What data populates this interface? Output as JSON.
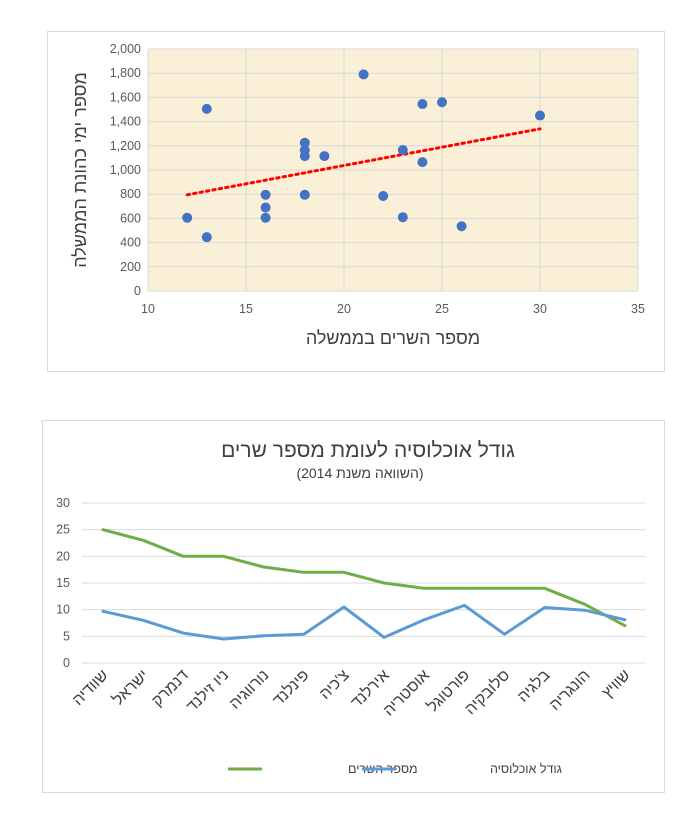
{
  "chart_data": [
    {
      "type": "scatter",
      "title": "",
      "xlabel": "מספר השרים בממשלה",
      "ylabel": "מספר ימי כהונת הממשלה",
      "xlim": [
        10,
        35
      ],
      "ylim": [
        0,
        2000
      ],
      "xticks": [
        10,
        15,
        20,
        25,
        30,
        35
      ],
      "xtick_labels": [
        "10",
        "15",
        "20",
        "25",
        "30",
        "35"
      ],
      "yticks": [
        0,
        200,
        400,
        600,
        800,
        1000,
        1200,
        1400,
        1600,
        1800,
        2000
      ],
      "ytick_labels": [
        "0",
        "200",
        "400",
        "600",
        "800",
        "1,000",
        "1,200",
        "1,400",
        "1,600",
        "1,800",
        "2,000"
      ],
      "points": [
        {
          "x": 12,
          "y": 605
        },
        {
          "x": 13,
          "y": 1505
        },
        {
          "x": 13,
          "y": 445
        },
        {
          "x": 16,
          "y": 795
        },
        {
          "x": 16,
          "y": 690
        },
        {
          "x": 16,
          "y": 605
        },
        {
          "x": 18,
          "y": 1225
        },
        {
          "x": 18,
          "y": 1165
        },
        {
          "x": 18,
          "y": 1115
        },
        {
          "x": 18,
          "y": 795
        },
        {
          "x": 19,
          "y": 1115
        },
        {
          "x": 21,
          "y": 1790
        },
        {
          "x": 22,
          "y": 785
        },
        {
          "x": 23,
          "y": 1165
        },
        {
          "x": 23,
          "y": 610
        },
        {
          "x": 24,
          "y": 1545
        },
        {
          "x": 24,
          "y": 1065
        },
        {
          "x": 25,
          "y": 1560
        },
        {
          "x": 26,
          "y": 535
        },
        {
          "x": 30,
          "y": 1450
        }
      ],
      "trendline": {
        "x": [
          12,
          30
        ],
        "y": [
          795,
          1340
        ]
      },
      "colors": {
        "points": "#4472C4",
        "trendline": "#FF0000",
        "plot_bg": "#FAF0D7",
        "grid": "#D9D9D9"
      }
    },
    {
      "type": "line",
      "title": "גודל אוכלוסיה לעומת מספר שרים",
      "subtitle": "(השוואה משנת 2014)",
      "categories": [
        "שוודיה",
        "ישראל",
        "דנמרק",
        "ניו זילנד",
        "נורווגיה",
        "פינלנד",
        "צ'כיה",
        "אירלנד",
        "אוסטריה",
        "פורטוגל",
        "סלובקיה",
        "בלגיה",
        "הונגריה",
        "שוויץ"
      ],
      "ylim": [
        0,
        30
      ],
      "yticks": [
        0,
        5,
        10,
        15,
        20,
        25,
        30
      ],
      "ytick_labels": [
        "0",
        "5",
        "10",
        "15",
        "20",
        "25",
        "30"
      ],
      "series": [
        {
          "name": "מספר השרים",
          "color": "#70AD47",
          "values": [
            25,
            23,
            20,
            20,
            18,
            17,
            17,
            15,
            14,
            14,
            14,
            14,
            11,
            7
          ]
        },
        {
          "name": "גודל אוכלוסיה",
          "color": "#5B9BD5",
          "values": [
            9.7,
            8.0,
            5.6,
            4.5,
            5.1,
            5.4,
            10.5,
            4.8,
            8.1,
            10.8,
            5.4,
            10.4,
            9.9,
            8.1
          ]
        }
      ],
      "legend_position": "bottom"
    }
  ]
}
